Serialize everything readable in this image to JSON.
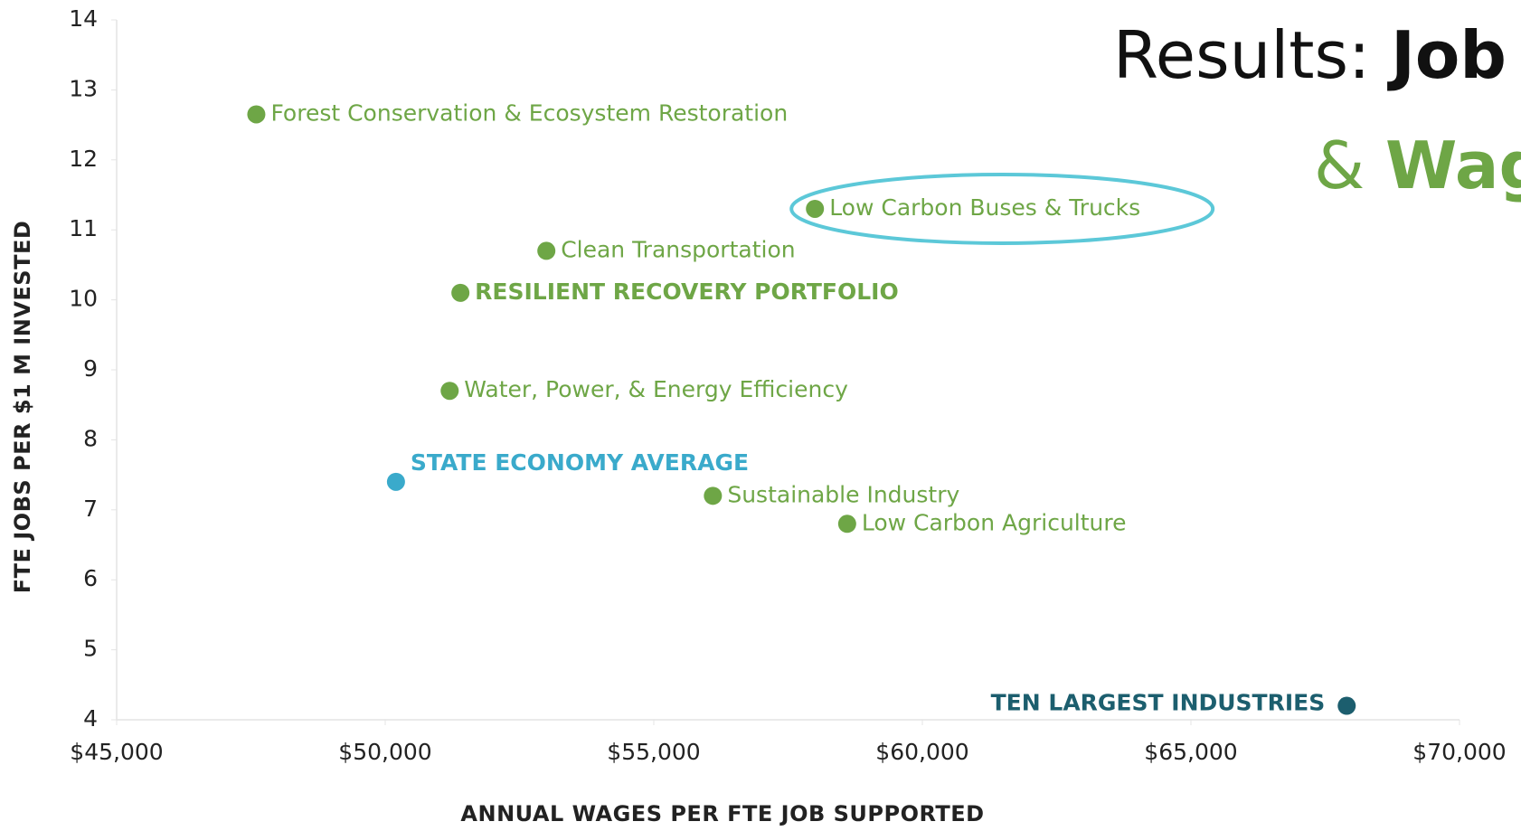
{
  "chart_data": {
    "type": "scatter",
    "title": {
      "lead": "Results: ",
      "lead_bold": "Job",
      "second": "& ",
      "second_bold": "Wag"
    },
    "xlabel": "ANNUAL WAGES PER FTE JOB SUPPORTED",
    "ylabel": "FTE JOBS PER $1 M INVESTED",
    "xlim": [
      45000,
      70000
    ],
    "xticks": [
      {
        "value": 45000,
        "label": "$45,000"
      },
      {
        "value": 50000,
        "label": "$50,000"
      },
      {
        "value": 55000,
        "label": "$55,000"
      },
      {
        "value": 60000,
        "label": "$60,000"
      },
      {
        "value": 65000,
        "label": "$65,000"
      },
      {
        "value": 70000,
        "label": "$70,000"
      }
    ],
    "ylim": [
      4,
      14
    ],
    "yticks": [
      4,
      5,
      6,
      7,
      8,
      9,
      10,
      11,
      12,
      13,
      14
    ],
    "grid": false,
    "points": [
      {
        "name": "Forest Conservation & Ecosystem Restoration",
        "x": 47600,
        "y": 12.65,
        "color": "#6ea646"
      },
      {
        "name": "Low Carbon Buses & Trucks",
        "x": 58000,
        "y": 11.3,
        "color": "#6ea646"
      },
      {
        "name": "Clean Transportation",
        "x": 53000,
        "y": 10.7,
        "color": "#6ea646"
      },
      {
        "name": "RESILIENT RECOVERY PORTFOLIO",
        "x": 51400,
        "y": 10.1,
        "color": "#6ea646"
      },
      {
        "name": "Water, Power, & Energy Efficiency",
        "x": 51200,
        "y": 8.7,
        "color": "#6ea646"
      },
      {
        "name": "STATE ECONOMY AVERAGE",
        "x": 50200,
        "y": 7.4,
        "color": "#3aaacb"
      },
      {
        "name": "Sustainable Industry",
        "x": 56100,
        "y": 7.2,
        "color": "#6ea646"
      },
      {
        "name": "Low Carbon Agriculture",
        "x": 58600,
        "y": 6.8,
        "color": "#6ea646"
      },
      {
        "name": "TEN LARGEST INDUSTRIES",
        "x": 67900,
        "y": 4.2,
        "color": "#1c5e6e"
      }
    ],
    "highlight_color": "#5cc8d8",
    "title_color": "#111111",
    "title_accent_color": "#6ea646"
  }
}
